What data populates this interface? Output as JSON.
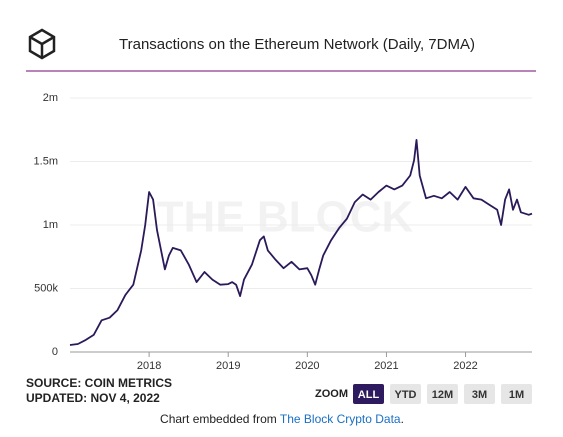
{
  "chart_data": {
    "type": "line",
    "title": "Transactions on the Ethereum Network (Daily, 7DMA)",
    "watermark": "THE BLOCK",
    "color": "#2b1a5a",
    "x": [
      2017.0,
      2017.1,
      2017.2,
      2017.3,
      2017.4,
      2017.5,
      2017.6,
      2017.7,
      2017.8,
      2017.9,
      2017.95,
      2018.0,
      2018.05,
      2018.1,
      2018.2,
      2018.25,
      2018.3,
      2018.4,
      2018.5,
      2018.6,
      2018.7,
      2018.8,
      2018.9,
      2019.0,
      2019.05,
      2019.1,
      2019.15,
      2019.2,
      2019.3,
      2019.4,
      2019.45,
      2019.5,
      2019.6,
      2019.7,
      2019.8,
      2019.9,
      2020.0,
      2020.05,
      2020.1,
      2020.15,
      2020.2,
      2020.3,
      2020.4,
      2020.5,
      2020.6,
      2020.7,
      2020.8,
      2020.9,
      2021.0,
      2021.1,
      2021.2,
      2021.3,
      2021.35,
      2021.38,
      2021.42,
      2021.5,
      2021.6,
      2021.7,
      2021.8,
      2021.9,
      2022.0,
      2022.1,
      2022.2,
      2022.3,
      2022.4,
      2022.45,
      2022.5,
      2022.55,
      2022.6,
      2022.65,
      2022.7,
      2022.8,
      2022.84
    ],
    "values": [
      55000,
      63000,
      95000,
      135000,
      250000,
      270000,
      330000,
      450000,
      530000,
      800000,
      1000000,
      1260000,
      1200000,
      960000,
      650000,
      760000,
      820000,
      800000,
      690000,
      550000,
      630000,
      570000,
      530000,
      535000,
      550000,
      530000,
      440000,
      570000,
      690000,
      880000,
      910000,
      800000,
      725000,
      660000,
      710000,
      650000,
      660000,
      605000,
      530000,
      650000,
      760000,
      880000,
      975000,
      1050000,
      1180000,
      1240000,
      1200000,
      1260000,
      1310000,
      1280000,
      1310000,
      1390000,
      1510000,
      1670000,
      1390000,
      1210000,
      1230000,
      1210000,
      1260000,
      1200000,
      1300000,
      1210000,
      1200000,
      1160000,
      1120000,
      1000000,
      1200000,
      1280000,
      1120000,
      1200000,
      1100000,
      1080000,
      1090000
    ],
    "xlim": [
      2017.0,
      2022.84
    ],
    "xticks": [
      2018,
      2019,
      2020,
      2021,
      2022
    ],
    "ylim": [
      0,
      2000000
    ],
    "yticks": [
      0,
      {
        "value": 500000,
        "label": "500k"
      },
      {
        "value": 1000000,
        "label": "1m"
      },
      {
        "value": 1500000,
        "label": "1.5m"
      },
      {
        "value": 2000000,
        "label": "2m"
      }
    ],
    "grid": true
  },
  "source": "SOURCE: COIN METRICS",
  "updated": "UPDATED: NOV 4, 2022",
  "zoom": {
    "label": "ZOOM",
    "buttons": [
      "ALL",
      "YTD",
      "12M",
      "3M",
      "1M"
    ],
    "active": 0
  },
  "footer": {
    "prefix": "Chart embedded from",
    "link": "The Block Crypto Data",
    "suffix": "."
  }
}
